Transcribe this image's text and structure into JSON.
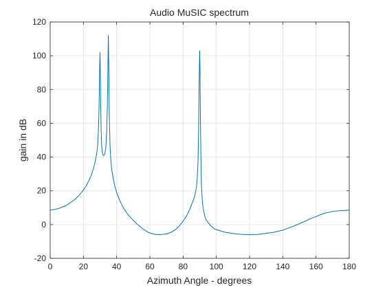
{
  "chart_data": {
    "type": "line",
    "title": "Audio MuSIC spectrum",
    "xlabel": "Azimuth Angle - degrees",
    "ylabel": "gain in dB",
    "xlim": [
      0,
      180
    ],
    "ylim": [
      -20,
      120
    ],
    "xticks": [
      "0",
      "20",
      "40",
      "60",
      "80",
      "100",
      "120",
      "140",
      "160",
      "180"
    ],
    "yticks": [
      "-20",
      "0",
      "20",
      "40",
      "60",
      "80",
      "100",
      "120"
    ],
    "grid": true,
    "series_color": "#0072bd",
    "series": [
      {
        "x": [
          0,
          5,
          10,
          15,
          18,
          20,
          22,
          24,
          25,
          26,
          27,
          28,
          28.5,
          29,
          29.3,
          29.6,
          29.8,
          30,
          30.2,
          30.4,
          30.7,
          31,
          31.5,
          32,
          32.5,
          33,
          33.5,
          34,
          34.4,
          34.7,
          35,
          35.3,
          35.6,
          36,
          36.5,
          37,
          38,
          39,
          40,
          42,
          44,
          46,
          48,
          50,
          52,
          55,
          58,
          60,
          63,
          66,
          70,
          73,
          76,
          78,
          80,
          82,
          84,
          86,
          87,
          88,
          88.5,
          89,
          89.3,
          89.6,
          89.8,
          90,
          90.2,
          90.4,
          90.7,
          91,
          91.5,
          92,
          93,
          94,
          96,
          98,
          100,
          105,
          110,
          115,
          120,
          125,
          130,
          135,
          140,
          145,
          150,
          155,
          160,
          165,
          170,
          175,
          180
        ],
        "y": [
          8.5,
          9.5,
          11.5,
          15,
          18,
          20.5,
          23.5,
          27.5,
          30,
          33,
          37,
          42,
          46,
          55,
          65,
          80,
          95,
          102,
          88,
          70,
          55,
          46,
          42,
          41,
          41,
          42.5,
          46,
          55,
          70,
          90,
          112,
          90,
          65,
          47,
          38,
          33,
          27,
          22.5,
          19,
          14,
          10,
          7,
          4.5,
          2.5,
          0.5,
          -2,
          -4,
          -5,
          -5.8,
          -6,
          -5.5,
          -4.5,
          -2.5,
          -0.5,
          2,
          5,
          9,
          14,
          17,
          22,
          27,
          38,
          55,
          80,
          95,
          103,
          90,
          65,
          40,
          24,
          15,
          10,
          5,
          2.5,
          0,
          -2,
          -3,
          -4.5,
          -5.3,
          -5.8,
          -6,
          -5.8,
          -5.2,
          -4.5,
          -3.3,
          -1.5,
          0.5,
          2.7,
          4.8,
          6.7,
          7.8,
          8.3,
          8.5
        ]
      }
    ]
  }
}
